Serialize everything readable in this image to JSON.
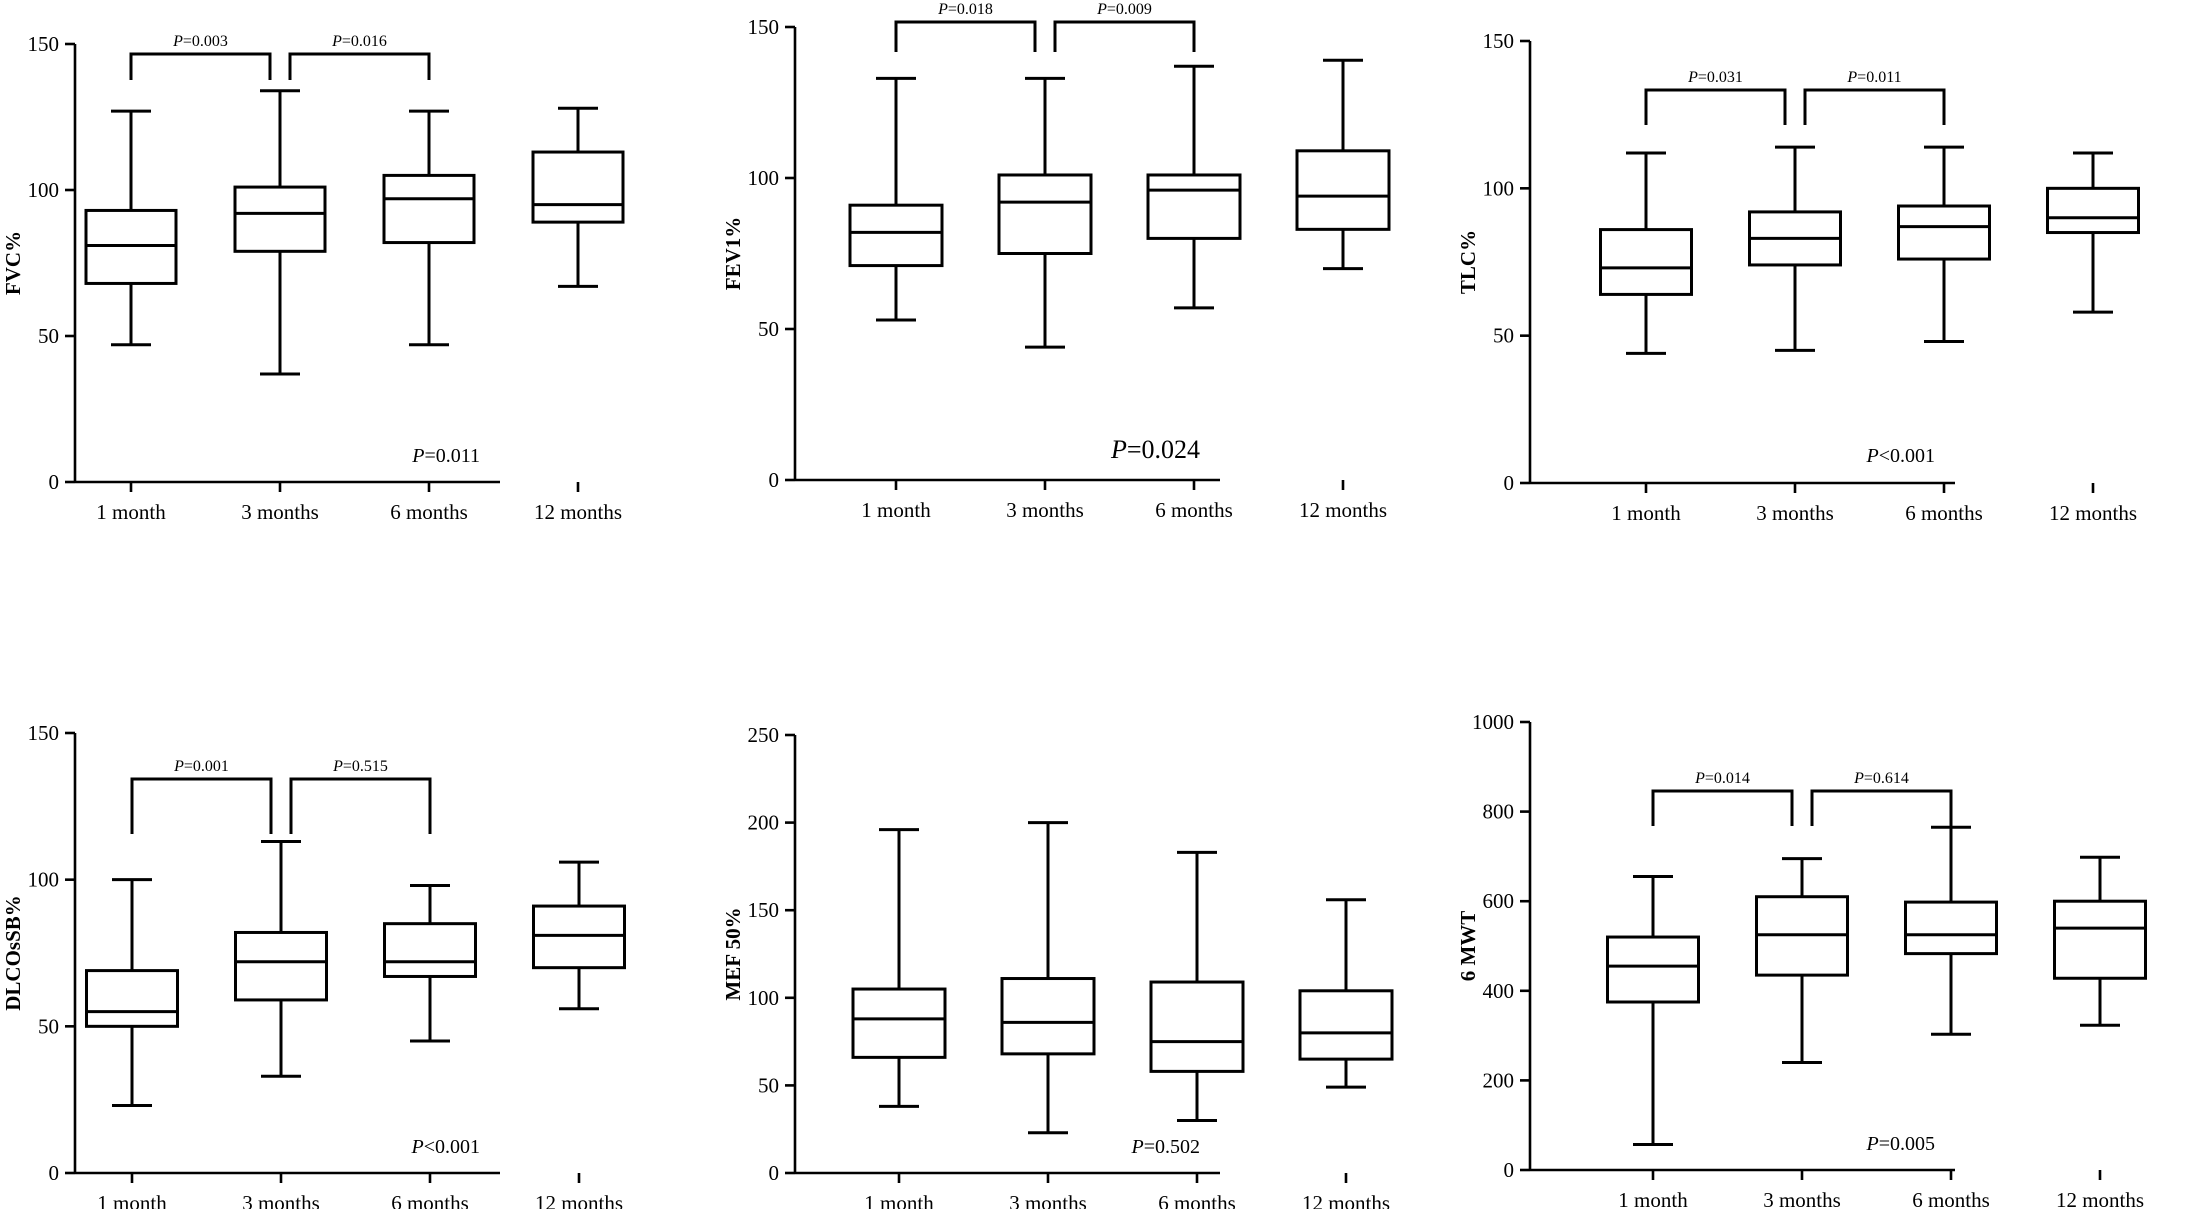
{
  "chart_data": [
    {
      "type": "box",
      "ylabel": "FVC%",
      "ylim": [
        0,
        150
      ],
      "yticks": [
        0,
        50,
        100,
        150
      ],
      "categories": [
        "1 month",
        "3 months",
        "6 months",
        "12 months"
      ],
      "boxes": [
        {
          "min": 47,
          "q1": 68,
          "median": 81,
          "q3": 93,
          "max": 127
        },
        {
          "min": 37,
          "q1": 79,
          "median": 92,
          "q3": 101,
          "max": 134
        },
        {
          "min": 47,
          "q1": 82,
          "median": 97,
          "q3": 105,
          "max": 127
        },
        {
          "min": 67,
          "q1": 89,
          "median": 95,
          "q3": 113,
          "max": 128
        }
      ],
      "brackets": [
        {
          "from": 0,
          "to": 1,
          "p_letter": "P",
          "p_text": "=0.003"
        },
        {
          "from": 1,
          "to": 2,
          "p_letter": "P",
          "p_text": "=0.016"
        }
      ],
      "overall_p": {
        "letter": "P",
        "text": "=0.011"
      }
    },
    {
      "type": "box",
      "ylabel": "FEV1%",
      "ylim": [
        0,
        150
      ],
      "yticks": [
        0,
        50,
        100,
        150
      ],
      "categories": [
        "1 month",
        "3 months",
        "6 months",
        "12 months"
      ],
      "boxes": [
        {
          "min": 53,
          "q1": 71,
          "median": 82,
          "q3": 91,
          "max": 133
        },
        {
          "min": 44,
          "q1": 75,
          "median": 92,
          "q3": 101,
          "max": 133
        },
        {
          "min": 57,
          "q1": 80,
          "median": 96,
          "q3": 101,
          "max": 137
        },
        {
          "min": 70,
          "q1": 83,
          "median": 94,
          "q3": 109,
          "max": 139
        }
      ],
      "brackets": [
        {
          "from": 0,
          "to": 1,
          "p_letter": "P",
          "p_text": "=0.018"
        },
        {
          "from": 1,
          "to": 2,
          "p_letter": "P",
          "p_text": "=0.009"
        }
      ],
      "overall_p": {
        "letter": "P",
        "text": "=0.024"
      }
    },
    {
      "type": "box",
      "ylabel": "TLC%",
      "ylim": [
        0,
        150
      ],
      "yticks": [
        0,
        50,
        100,
        150
      ],
      "categories": [
        "1 month",
        "3 months",
        "6 months",
        "12 months"
      ],
      "boxes": [
        {
          "min": 44,
          "q1": 64,
          "median": 73,
          "q3": 86,
          "max": 112
        },
        {
          "min": 45,
          "q1": 74,
          "median": 83,
          "q3": 92,
          "max": 114
        },
        {
          "min": 48,
          "q1": 76,
          "median": 87,
          "q3": 94,
          "max": 114
        },
        {
          "min": 58,
          "q1": 85,
          "median": 90,
          "q3": 100,
          "max": 112
        }
      ],
      "brackets": [
        {
          "from": 0,
          "to": 1,
          "p_letter": "P",
          "p_text": "=0.031"
        },
        {
          "from": 1,
          "to": 2,
          "p_letter": "P",
          "p_text": "=0.011"
        }
      ],
      "overall_p": {
        "letter": "P",
        "text": "<0.001"
      }
    },
    {
      "type": "box",
      "ylabel": "DLCOsSB%",
      "ylim": [
        0,
        150
      ],
      "yticks": [
        0,
        50,
        100,
        150
      ],
      "categories": [
        "1 month",
        "3 months",
        "6 months",
        "12 months"
      ],
      "boxes": [
        {
          "min": 23,
          "q1": 50,
          "median": 55,
          "q3": 69,
          "max": 100
        },
        {
          "min": 33,
          "q1": 59,
          "median": 72,
          "q3": 82,
          "max": 113
        },
        {
          "min": 45,
          "q1": 67,
          "median": 72,
          "q3": 85,
          "max": 98
        },
        {
          "min": 56,
          "q1": 70,
          "median": 81,
          "q3": 91,
          "max": 106
        }
      ],
      "brackets": [
        {
          "from": 0,
          "to": 1,
          "p_letter": "P",
          "p_text": "=0.001"
        },
        {
          "from": 1,
          "to": 2,
          "p_letter": "P",
          "p_text": "=0.515"
        }
      ],
      "overall_p": {
        "letter": "P",
        "text": "<0.001"
      }
    },
    {
      "type": "box",
      "ylabel": "MEF 50%",
      "ylim": [
        0,
        250
      ],
      "yticks": [
        0,
        50,
        100,
        150,
        200,
        250
      ],
      "categories": [
        "1 month",
        "3 months",
        "6 months",
        "12 months"
      ],
      "boxes": [
        {
          "min": 38,
          "q1": 66,
          "median": 88,
          "q3": 105,
          "max": 196
        },
        {
          "min": 23,
          "q1": 68,
          "median": 86,
          "q3": 111,
          "max": 200
        },
        {
          "min": 30,
          "q1": 58,
          "median": 75,
          "q3": 109,
          "max": 183
        },
        {
          "min": 49,
          "q1": 65,
          "median": 80,
          "q3": 104,
          "max": 156
        }
      ],
      "brackets": [],
      "overall_p": {
        "letter": "P",
        "text": "=0.502"
      }
    },
    {
      "type": "box",
      "ylabel": "6 MWT",
      "ylim": [
        0,
        1000
      ],
      "yticks": [
        0,
        200,
        400,
        600,
        800,
        1000
      ],
      "categories": [
        "1 month",
        "3 months",
        "6 months",
        "12 months"
      ],
      "boxes": [
        {
          "min": 57,
          "q1": 375,
          "median": 455,
          "q3": 520,
          "max": 655
        },
        {
          "min": 240,
          "q1": 435,
          "median": 525,
          "q3": 610,
          "max": 695
        },
        {
          "min": 303,
          "q1": 483,
          "median": 525,
          "q3": 598,
          "max": 765
        },
        {
          "min": 323,
          "q1": 428,
          "median": 540,
          "q3": 600,
          "max": 698
        }
      ],
      "brackets": [
        {
          "from": 0,
          "to": 1,
          "p_letter": "P",
          "p_text": "=0.014"
        },
        {
          "from": 1,
          "to": 2,
          "p_letter": "P",
          "p_text": "=0.614"
        }
      ],
      "overall_p": {
        "letter": "P",
        "text": "=0.005"
      }
    }
  ]
}
